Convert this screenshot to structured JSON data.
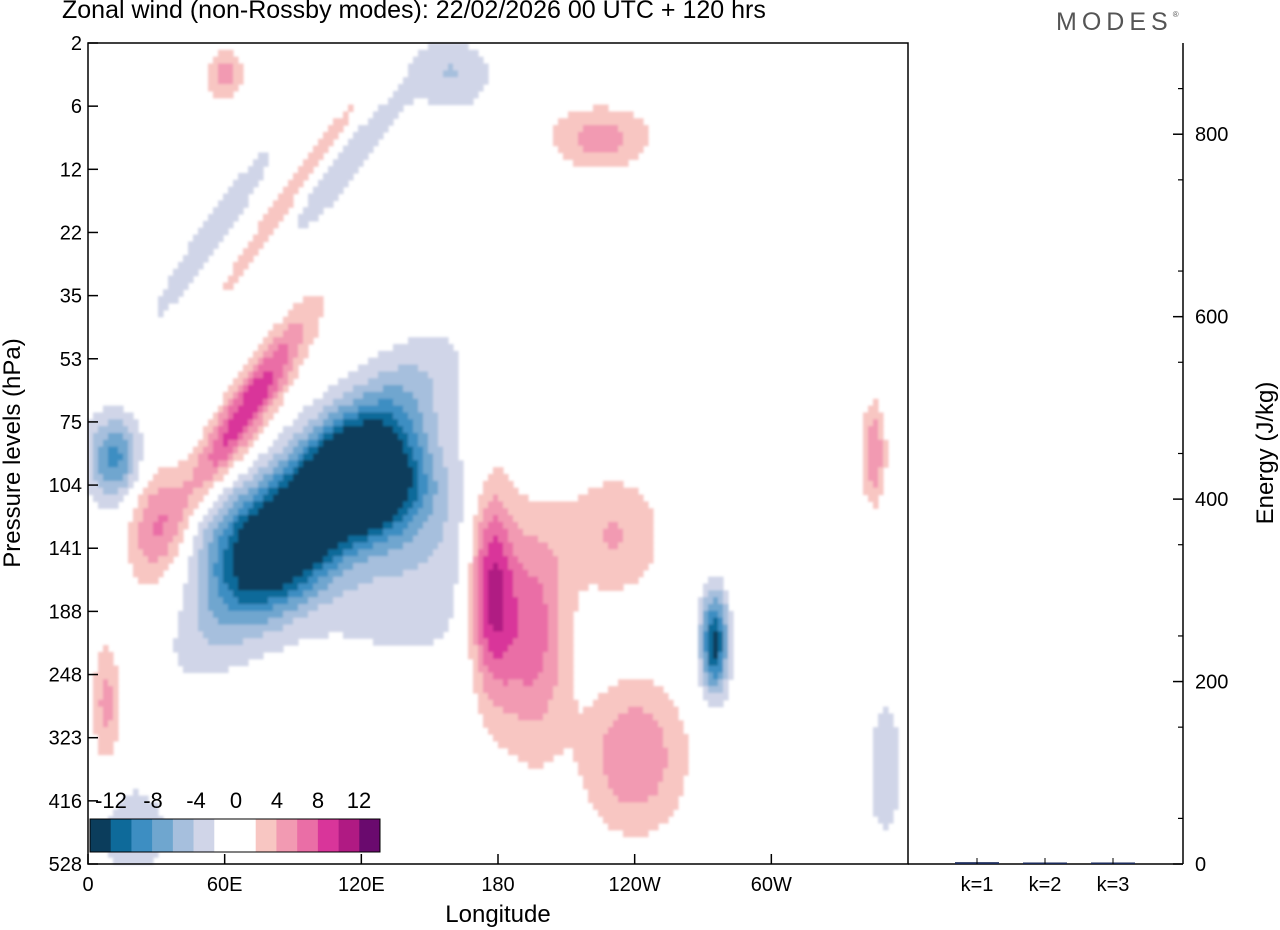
{
  "header": {
    "title": "Zonal wind (non-Rossby modes):  22/02/2026  00 UTC  + 120 hrs",
    "brand": "MODES"
  },
  "colors": {
    "neg": [
      "#0b3d5c",
      "#0e6a9a",
      "#3d8ec2",
      "#6fa6cf",
      "#a6bfdd",
      "#d0d5e8"
    ],
    "zero": "#ffffff",
    "pos": [
      "#f8c6c2",
      "#f29ab2",
      "#ea6ea6",
      "#d9359a",
      "#b01a83",
      "#6a0a6e"
    ],
    "bar": "#1a2a5a"
  },
  "chart_data": [
    {
      "type": "heatmap",
      "title": "Zonal wind (non-Rossby modes):  22/02/2026  00 UTC  + 120 hrs",
      "xlabel": "Longitude",
      "ylabel": "Pressure levels (hPa)",
      "x_ticks": [
        {
          "lon": 0,
          "label": "0"
        },
        {
          "lon": 60,
          "label": "60E"
        },
        {
          "lon": 120,
          "label": "120E"
        },
        {
          "lon": 180,
          "label": "180"
        },
        {
          "lon": 240,
          "label": "120W"
        },
        {
          "lon": 300,
          "label": "60W"
        }
      ],
      "x_range": [
        0,
        360
      ],
      "y_levels": [
        "2",
        "6",
        "12",
        "22",
        "35",
        "53",
        "75",
        "104",
        "141",
        "188",
        "248",
        "323",
        "416",
        "528"
      ],
      "colorbar": {
        "labels": [
          "-12",
          "-8",
          "-4",
          "0",
          "4",
          "8",
          "12"
        ],
        "levels": [
          -12,
          -10,
          -8,
          -6,
          -4,
          -2,
          0,
          2,
          4,
          6,
          8,
          10,
          12
        ]
      },
      "features": [
        {
          "lon": 100,
          "level": 7.3,
          "dlon": 44,
          "dlev": 1.1,
          "value": -14,
          "tilt": -0.035
        },
        {
          "lon": 75,
          "level": 7.9,
          "dlon": 28,
          "dlev": 0.9,
          "value": -7
        },
        {
          "lon": 125,
          "level": 7.0,
          "dlon": 24,
          "dlev": 0.8,
          "value": -13
        },
        {
          "lon": 12,
          "level": 6.6,
          "dlon": 12,
          "dlev": 0.7,
          "value": -9
        },
        {
          "lon": 140,
          "level": 8.2,
          "dlon": 60,
          "dlev": 1.8,
          "value": -3.5
        },
        {
          "lon": 70,
          "level": 5.8,
          "dlon": 26,
          "dlev": 0.6,
          "value": 10,
          "tilt": -0.05
        },
        {
          "lon": 30,
          "level": 7.6,
          "dlon": 14,
          "dlev": 1.0,
          "value": 6
        },
        {
          "lon": 177,
          "level": 8.6,
          "dlon": 10,
          "dlev": 1.6,
          "value": 11
        },
        {
          "lon": 195,
          "level": 9.2,
          "dlon": 16,
          "dlev": 1.9,
          "value": 8
        },
        {
          "lon": 230,
          "level": 7.8,
          "dlon": 22,
          "dlev": 1.0,
          "value": 4.5
        },
        {
          "lon": 240,
          "level": 11.3,
          "dlon": 22,
          "dlev": 1.2,
          "value": 6
        },
        {
          "lon": 275,
          "level": 9.5,
          "dlon": 6,
          "dlev": 0.8,
          "value": -13
        },
        {
          "lon": 225,
          "level": 1.5,
          "dlon": 22,
          "dlev": 0.5,
          "value": 5
        },
        {
          "lon": 60,
          "level": 0.5,
          "dlon": 8,
          "dlev": 0.4,
          "value": 5
        },
        {
          "lon": 160,
          "level": 0.5,
          "dlon": 18,
          "dlev": 0.6,
          "value": -4
        },
        {
          "lon": 55,
          "level": 3.0,
          "dlon": 30,
          "dlev": 0.4,
          "value": -4,
          "tilt": -0.05
        },
        {
          "lon": 90,
          "level": 2.4,
          "dlon": 40,
          "dlev": 0.4,
          "value": 4,
          "tilt": -0.05
        },
        {
          "lon": 110,
          "level": 2.0,
          "dlon": 30,
          "dlev": 0.5,
          "value": -4,
          "tilt": -0.04
        },
        {
          "lon": 345,
          "level": 6.5,
          "dlon": 5,
          "dlev": 0.8,
          "value": 6
        },
        {
          "lon": 8,
          "level": 10.5,
          "dlon": 6,
          "dlev": 1.0,
          "value": 5
        },
        {
          "lon": 350,
          "level": 11.5,
          "dlon": 10,
          "dlev": 1.5,
          "value": -3
        },
        {
          "lon": 20,
          "level": 12.5,
          "dlon": 20,
          "dlev": 1.0,
          "value": -3
        }
      ]
    },
    {
      "type": "bar",
      "ylabel": "Energy (J/kg)",
      "categories": [
        "k=1",
        "k=2",
        "k=3"
      ],
      "values": [
        2,
        1,
        1
      ],
      "ylim": [
        0,
        900
      ],
      "yticks": [
        0,
        200,
        400,
        600,
        800
      ]
    }
  ]
}
